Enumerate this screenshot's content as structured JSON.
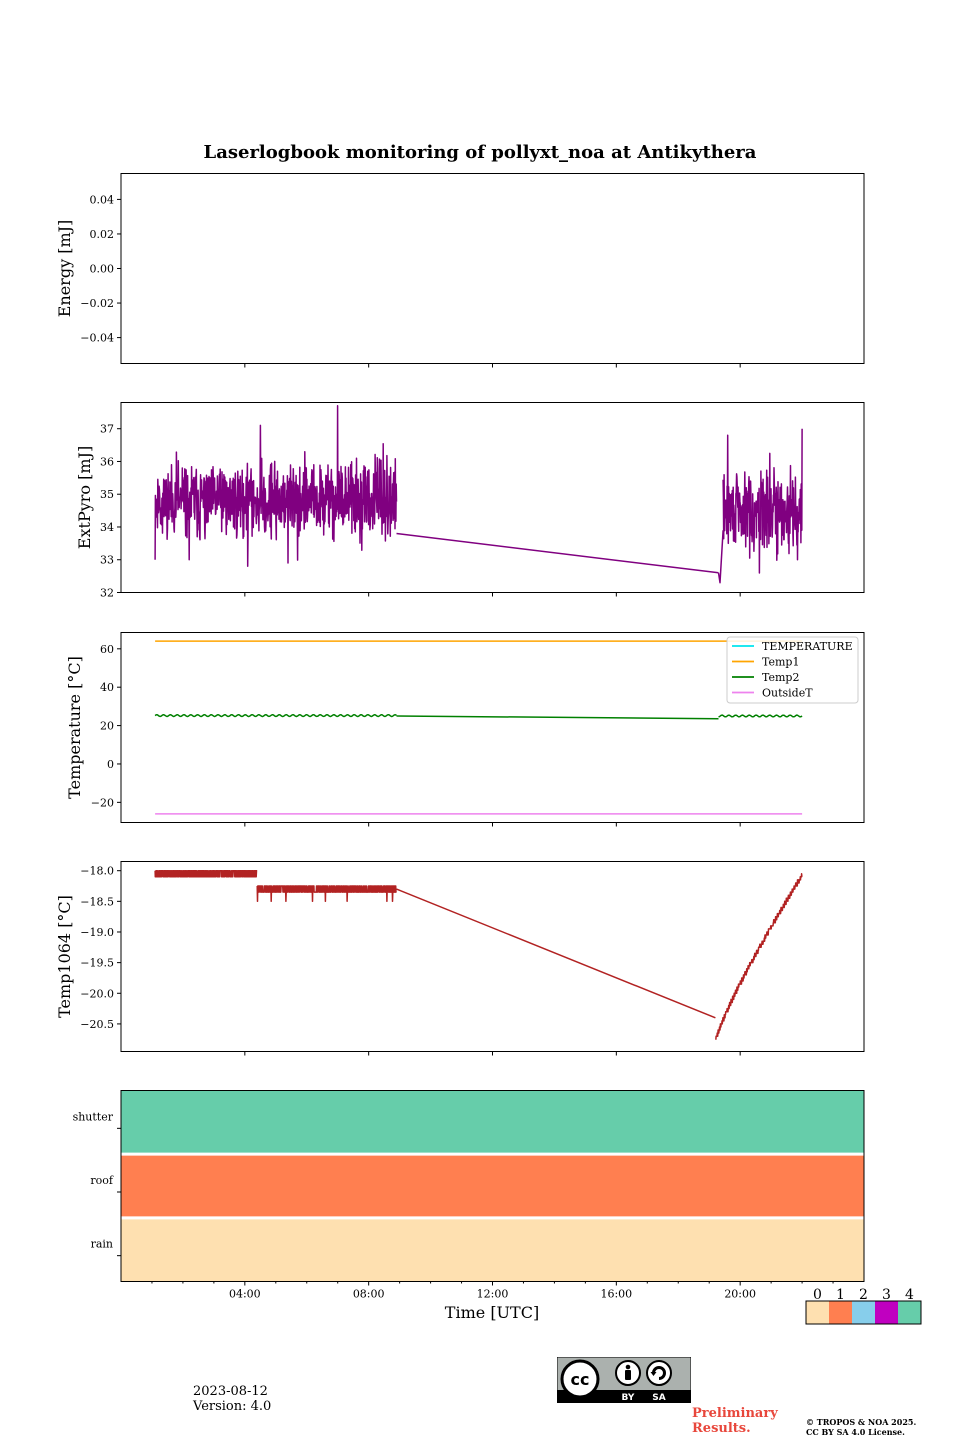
{
  "title": "Laserlogbook monitoring of pollyxt_noa at Antikythera",
  "footer": {
    "date": "2023-08-12",
    "version": "Version: 4.0",
    "preliminary": "Preliminary Results.",
    "copyright_line1": "© TROPOS & NOA 2025.",
    "copyright_line2": "CC BY SA 4.0 License.",
    "badge_by": "BY",
    "badge_sa": "SA"
  },
  "colors": {
    "extpyro": "#800080",
    "temperature": "#00e5ee",
    "temp1": "#ffa500",
    "temp2": "#008000",
    "outsidet": "#ee82ee",
    "temp1064": "#b22222",
    "status_0": "#fee0b0",
    "status_1": "#ff7f50",
    "status_2": "#87ceeb",
    "status_3": "#c000c0",
    "status_4": "#66cdaa"
  },
  "chart_data": [
    {
      "type": "line",
      "name": "energy",
      "ylabel": "Energy [mJ]",
      "ylim": [
        -0.055,
        0.055
      ],
      "yticks": [
        0.04,
        0.02,
        0.0,
        -0.02,
        -0.04
      ],
      "yticklabels": [
        "0.04",
        "0.02",
        "0.00",
        "−0.02",
        "−0.04"
      ],
      "series": []
    },
    {
      "type": "line",
      "name": "extpyro",
      "ylabel": "ExtPyro [mJ]",
      "ylim": [
        32,
        37.8
      ],
      "yticks": [
        32,
        33,
        34,
        35,
        36,
        37
      ],
      "yticklabels": [
        "32",
        "33",
        "34",
        "35",
        "36",
        "37"
      ],
      "series": [
        {
          "color_key": "extpyro",
          "segments": [
            {
              "x_start": 1.1,
              "x_end": 8.9,
              "n": 780,
              "mean": 34.8,
              "spread": 0.55,
              "spike_every": 23,
              "spike_amp": 1.3,
              "seed": 11,
              "bumps": [
                {
                  "at": 7.0,
                  "v": 37.7
                },
                {
                  "at": 4.5,
                  "v": 37.1
                },
                {
                  "at": 5.4,
                  "v": 32.9
                },
                {
                  "at": 2.2,
                  "v": 33.0
                }
              ]
            },
            {
              "x": [
                8.9,
                19.3
              ],
              "y": [
                33.8,
                32.6
              ]
            },
            {
              "x": [
                19.3,
                19.35,
                19.45
              ],
              "y": [
                32.6,
                32.3,
                33.9
              ]
            },
            {
              "x_start": 19.45,
              "x_end": 22.0,
              "n": 260,
              "mean": 34.5,
              "spread": 0.55,
              "spike_every": 17,
              "spike_amp": 1.2,
              "seed": 29,
              "bumps": [
                {
                  "at": 19.6,
                  "v": 36.8
                },
                {
                  "at": 22.0,
                  "v": 37.0
                },
                {
                  "at": 21.85,
                  "v": 33.0
                }
              ]
            }
          ]
        }
      ]
    },
    {
      "type": "line",
      "name": "temperature",
      "ylabel": "Temperature [°C]",
      "ylim": [
        -30.5,
        68.5
      ],
      "yticks": [
        60,
        40,
        20,
        0,
        -20
      ],
      "yticklabels": [
        "60",
        "40",
        "20",
        "0",
        "−20"
      ],
      "legend": {
        "position": "upper right",
        "entries": [
          "TEMPERATURE",
          "Temp1",
          "Temp2",
          "OutsideT"
        ]
      },
      "series": [
        {
          "name": "TEMPERATURE",
          "color_key": "temperature",
          "segments": []
        },
        {
          "name": "Temp1",
          "color_key": "temp1",
          "segments": [
            {
              "x": [
                1.1,
                22.0
              ],
              "y": [
                64.0,
                64.0
              ]
            }
          ]
        },
        {
          "name": "Temp2",
          "color_key": "temp2",
          "segments": [
            {
              "x_start": 1.1,
              "x_end": 8.9,
              "n": 300,
              "mean": 25.2,
              "spread": 0.0,
              "wave_amp": 0.45,
              "wave_period": 0.22,
              "seed": 3
            },
            {
              "x": [
                8.9,
                19.3
              ],
              "y": [
                25.0,
                23.6
              ]
            },
            {
              "x_start": 19.3,
              "x_end": 22.0,
              "n": 110,
              "mean": 25.0,
              "spread": 0.0,
              "wave_amp": 0.45,
              "wave_period": 0.22,
              "seed": 5
            }
          ]
        },
        {
          "name": "OutsideT",
          "color_key": "outsidet",
          "segments": [
            {
              "x": [
                1.1,
                22.0
              ],
              "y": [
                -26.0,
                -26.0
              ]
            }
          ]
        }
      ]
    },
    {
      "type": "line",
      "name": "temp1064",
      "ylabel": "Temp1064 [°C]",
      "ylim": [
        -20.95,
        -17.85
      ],
      "yticks": [
        -18.0,
        -18.5,
        -19.0,
        -19.5,
        -20.0,
        -20.5
      ],
      "yticklabels": [
        "−18.0",
        "−18.5",
        "−19.0",
        "−19.5",
        "−20.0",
        "−20.5"
      ],
      "series": [
        {
          "color_key": "temp1064",
          "segments": [
            {
              "x_start": 1.1,
              "x_end": 4.4,
              "n": 420,
              "levels": [
                -18.0,
                -18.1
              ],
              "seed": 7
            },
            {
              "x_start": 4.4,
              "x_end": 8.9,
              "n": 520,
              "levels": [
                -18.25,
                -18.35
              ],
              "seed": 9,
              "rare": -18.5
            },
            {
              "x": [
                8.9,
                19.2
              ],
              "y": [
                -18.3,
                -20.4
              ]
            },
            {
              "x_start": 19.2,
              "x_end": 22.0,
              "n": 380,
              "ramp": [
                -20.8,
                -18.1
              ],
              "step": 0.05,
              "seed": 13
            }
          ]
        }
      ]
    },
    {
      "type": "heatmap",
      "name": "status",
      "rows": [
        "shutter",
        "roof",
        "rain"
      ],
      "row_values": [
        4,
        1,
        0
      ],
      "colorbar": {
        "ticks": [
          "0",
          "1",
          "2",
          "3",
          "4"
        ]
      },
      "xlabel": "Time [UTC]",
      "xlim": [
        0,
        24
      ],
      "xticks": [
        4,
        8,
        12,
        16,
        20
      ],
      "xticklabels": [
        "04:00",
        "08:00",
        "12:00",
        "16:00",
        "20:00"
      ]
    }
  ]
}
